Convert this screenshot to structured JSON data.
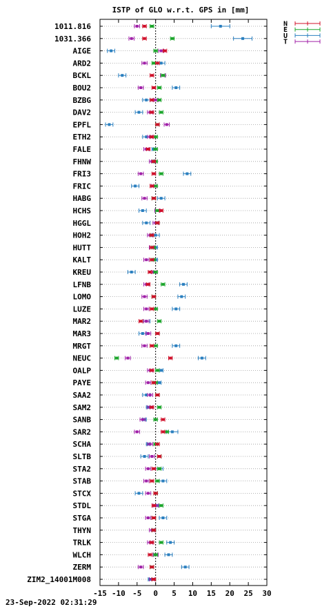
{
  "chart_data": {
    "type": "scatter",
    "title": "ISTP of GLO w.r.t. GPS in [mm]",
    "xlim": [
      -15,
      30
    ],
    "x_ticks": [
      -15,
      -10,
      -5,
      0,
      5,
      10,
      15,
      20,
      25,
      30
    ],
    "grid": "horizontal dotted",
    "legend_position": "top-right",
    "legend": [
      {
        "key": "N",
        "label": "N",
        "color": "#d0102a"
      },
      {
        "key": "E",
        "label": "E",
        "color": "#1aa52a"
      },
      {
        "key": "U",
        "label": "U",
        "color": "#2a7fbf"
      },
      {
        "key": "T",
        "label": "T",
        "color": "#a020a8"
      }
    ],
    "categories": [
      "1011.816",
      "1031.366",
      "AIGE",
      "ARD2",
      "BCKL",
      "BOU2",
      "BZBG",
      "DAV2",
      "EPFL",
      "ETH2",
      "FALE",
      "FHNW",
      "FRI3",
      "FRIC",
      "HABG",
      "HCHS",
      "HGGL",
      "HOH2",
      "HUTT",
      "KALT",
      "KREU",
      "LFNB",
      "LOMO",
      "LUZE",
      "MAR2",
      "MAR3",
      "MRGT",
      "NEUC",
      "OALP",
      "PAYE",
      "SAA2",
      "SAM2",
      "SANB",
      "SAR2",
      "SCHA",
      "SLTB",
      "STA2",
      "STAB",
      "STCX",
      "STDL",
      "STGA",
      "THYN",
      "TRLK",
      "WLCH",
      "ZERM",
      "ZIM2_14001M008"
    ],
    "series": [
      {
        "key": "N",
        "values": [
          -3.0,
          -3.0,
          2.5,
          0.5,
          -1.0,
          -0.5,
          -1.0,
          -1.0,
          0.5,
          -1.0,
          -2.0,
          -0.5,
          -0.5,
          -1.0,
          -0.5,
          1.5,
          0.5,
          -1.0,
          -1.0,
          -1.0,
          -1.5,
          -2.0,
          -0.5,
          -1.0,
          -4.0,
          0.5,
          -1.0,
          4.0,
          -1.0,
          -0.5,
          0.5,
          -1.0,
          2.0,
          2.0,
          0.5,
          1.0,
          -0.5,
          -1.0,
          0.0,
          -0.5,
          -0.5,
          -0.5,
          -1.0,
          -1.5,
          -1.0,
          -0.5
        ],
        "err": [
          0.5,
          0.5,
          0.5,
          0.5,
          0.5,
          0.5,
          0.5,
          0.5,
          0.5,
          0.5,
          0.5,
          0.5,
          0.5,
          0.5,
          0.5,
          0.5,
          0.5,
          0.5,
          0.5,
          0.5,
          0.5,
          0.5,
          0.5,
          0.5,
          0.5,
          0.5,
          0.5,
          0.5,
          0.5,
          0.5,
          0.5,
          0.5,
          0.5,
          0.5,
          0.5,
          0.5,
          0.5,
          0.5,
          0.5,
          0.5,
          0.5,
          0.5,
          0.5,
          0.5,
          0.5,
          0.5
        ]
      },
      {
        "key": "E",
        "values": [
          -1.0,
          4.5,
          0.0,
          -0.5,
          2.0,
          1.0,
          1.0,
          1.5,
          0.5,
          0.0,
          0.0,
          0.0,
          1.5,
          0.0,
          -0.5,
          0.5,
          0.5,
          -1.0,
          -0.5,
          -0.5,
          0.0,
          2.0,
          -0.5,
          0.0,
          1.0,
          0.5,
          0.0,
          -10.5,
          0.5,
          0.0,
          0.5,
          1.0,
          0.0,
          3.0,
          0.0,
          1.0,
          1.0,
          0.5,
          0.0,
          1.5,
          -0.5,
          -0.5,
          1.5,
          0.0,
          -1.0,
          -0.5
        ],
        "err": [
          0.5,
          0.5,
          0.5,
          0.5,
          0.5,
          0.5,
          0.5,
          0.5,
          0.5,
          0.5,
          0.5,
          0.5,
          0.5,
          0.5,
          0.5,
          0.5,
          0.5,
          0.5,
          0.5,
          0.5,
          0.5,
          0.5,
          0.5,
          0.5,
          0.5,
          0.5,
          0.5,
          0.5,
          0.5,
          0.5,
          0.5,
          0.5,
          0.5,
          0.5,
          0.5,
          0.5,
          0.5,
          0.5,
          0.5,
          0.5,
          0.5,
          0.5,
          0.5,
          0.5,
          0.5,
          0.5
        ]
      },
      {
        "key": "U",
        "values": [
          17.5,
          23.5,
          -12.0,
          1.5,
          -9.0,
          5.5,
          -2.5,
          -4.5,
          -12.5,
          -2.5,
          -0.5,
          -0.5,
          8.5,
          -5.5,
          1.5,
          -3.5,
          -2.5,
          0.0,
          0.0,
          0.0,
          -6.5,
          7.5,
          7.0,
          5.5,
          -2.5,
          -3.5,
          5.5,
          12.5,
          1.5,
          1.0,
          -2.5,
          -2.0,
          -3.0,
          4.5,
          -2.0,
          -3.0,
          1.0,
          2.0,
          -4.5,
          0.5,
          2.0,
          -0.5,
          4.0,
          3.5,
          8.0,
          -1.5
        ],
        "err": [
          2.5,
          2.5,
          1.0,
          1.0,
          1.0,
          1.0,
          1.0,
          1.0,
          1.0,
          1.0,
          0.5,
          0.5,
          1.0,
          1.0,
          1.0,
          1.0,
          1.0,
          1.0,
          0.5,
          0.5,
          1.0,
          1.0,
          1.0,
          1.0,
          1.0,
          1.0,
          1.0,
          1.0,
          0.5,
          0.5,
          1.0,
          0.5,
          0.5,
          1.5,
          0.5,
          1.0,
          1.0,
          1.0,
          1.0,
          0.5,
          1.0,
          0.5,
          1.0,
          1.0,
          1.0,
          0.5
        ]
      },
      {
        "key": "T",
        "values": [
          -5.0,
          -6.5,
          1.5,
          -3.0,
          2.0,
          -4.0,
          0.0,
          -1.5,
          3.0,
          -1.5,
          -2.5,
          -1.0,
          -4.0,
          -0.5,
          -3.0,
          0.5,
          0.0,
          -1.5,
          -1.0,
          -2.5,
          -0.5,
          -2.5,
          -3.0,
          -2.5,
          -2.5,
          -2.0,
          -3.0,
          -7.5,
          -1.5,
          -2.0,
          -1.5,
          -1.5,
          -3.5,
          -5.0,
          -1.5,
          -1.0,
          -2.0,
          -2.5,
          -2.0,
          0.0,
          -2.0,
          -1.0,
          -1.5,
          0.0,
          -4.0,
          -1.0
        ],
        "err": [
          0.7,
          0.7,
          0.7,
          0.7,
          0.7,
          0.7,
          0.7,
          0.7,
          0.7,
          0.7,
          0.7,
          0.7,
          0.7,
          0.7,
          0.7,
          0.7,
          0.7,
          0.7,
          0.7,
          0.7,
          0.7,
          0.7,
          0.7,
          0.7,
          0.7,
          0.7,
          0.7,
          0.7,
          0.7,
          0.7,
          0.7,
          0.7,
          0.7,
          0.7,
          0.7,
          0.7,
          0.7,
          0.7,
          0.7,
          0.7,
          0.7,
          0.7,
          0.7,
          0.7,
          0.7,
          0.7
        ]
      }
    ]
  },
  "footer": {
    "timestamp": "23-Sep-2022 02:31:29"
  }
}
